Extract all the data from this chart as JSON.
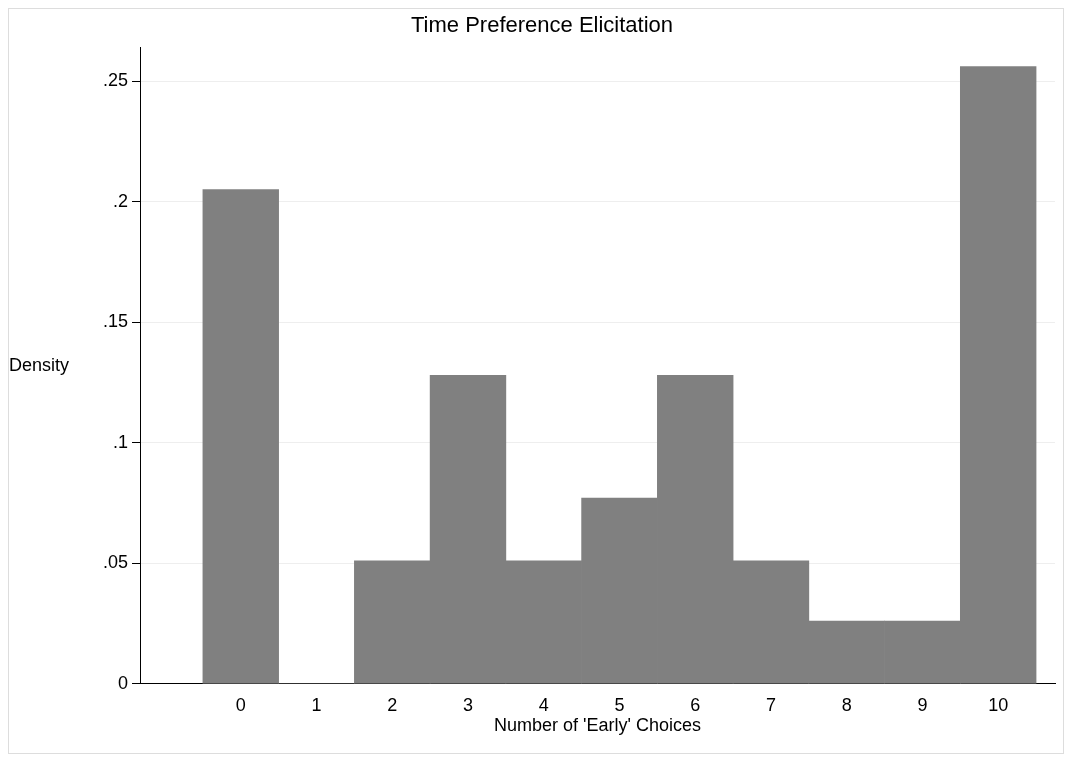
{
  "chart_data": {
    "type": "bar",
    "title": "Time Preference Elicitation",
    "xlabel": "Number of 'Early' Choices",
    "ylabel": "Density",
    "x": [
      0,
      1,
      2,
      3,
      4,
      5,
      6,
      7,
      8,
      9,
      10
    ],
    "values": [
      0.205,
      0,
      0.051,
      0.128,
      0.051,
      0.077,
      0.128,
      0.051,
      0.026,
      0.026,
      0.256
    ],
    "color": "#808080",
    "xlim": [
      -1.33,
      10.75
    ],
    "xticks": [
      0,
      1,
      2,
      3,
      4,
      5,
      6,
      7,
      8,
      9,
      10
    ],
    "ylim": [
      0,
      0.264
    ],
    "yticks": [
      0,
      {
        "value": 0.05,
        "label": ".05"
      },
      {
        "value": 0.1,
        "label": ".1"
      },
      {
        "value": 0.15,
        "label": ".15"
      },
      {
        "value": 0.2,
        "label": ".2"
      },
      {
        "value": 0.25,
        "label": ".25"
      }
    ],
    "grid": "y",
    "legend": false
  }
}
